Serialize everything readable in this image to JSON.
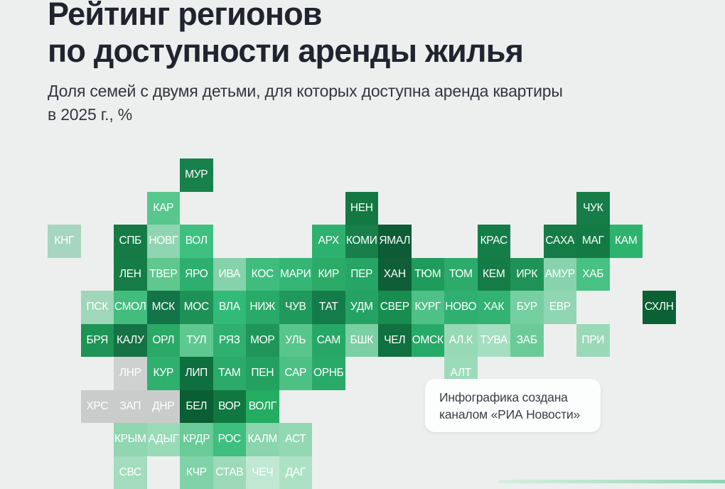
{
  "page": {
    "background": "#edefee"
  },
  "header": {
    "title_line1": "Рейтинг регионов",
    "title_line2": "по доступности аренды жилья",
    "subtitle_line1": "Доля семей с двумя детьми, для которых доступна аренда квартиры",
    "subtitle_line2": "в 2025 г., %"
  },
  "note": {
    "line1": "Инфографика создана",
    "line2": "каналом «РИА Новости»"
  },
  "chart_data": {
    "type": "heatmap",
    "subtype": "tile-cartogram-of-russian-regions",
    "title": "Рейтинг регионов по доступности аренды жилья",
    "subtitle": "Доля семей с двумя детьми, для которых доступна аренда квартиры в 2025 г., %",
    "value_labels_shown": false,
    "no_data_color": "#c9cccb",
    "accent_dark": "#0b6034",
    "accent_light": "#c0e8d3",
    "regions": [
      {
        "label": "МУР",
        "row": 0,
        "col": 4,
        "color": "#16814b"
      },
      {
        "label": "КАР",
        "row": 1,
        "col": 3,
        "color": "#58c78d"
      },
      {
        "label": "НЕН",
        "row": 1,
        "col": 9,
        "color": "#147843"
      },
      {
        "label": "ЧУК",
        "row": 1,
        "col": 16,
        "color": "#167c48"
      },
      {
        "label": "КНГ",
        "row": 2,
        "col": 0,
        "color": "#a6d6bd"
      },
      {
        "label": "СПБ",
        "row": 2,
        "col": 2,
        "color": "#157a46"
      },
      {
        "label": "НОВГ",
        "row": 2,
        "col": 3,
        "color": "#90d5b1"
      },
      {
        "label": "ВОЛ",
        "row": 2,
        "col": 4,
        "color": "#3dc080"
      },
      {
        "label": "АРХ",
        "row": 2,
        "col": 8,
        "color": "#2eb06f"
      },
      {
        "label": "КОМИ",
        "row": 2,
        "col": 9,
        "color": "#187f4b"
      },
      {
        "label": "ЯМАЛ",
        "row": 2,
        "col": 10,
        "color": "#0d5c36"
      },
      {
        "label": "КРАС",
        "row": 2,
        "col": 13,
        "color": "#157d48"
      },
      {
        "label": "САХА",
        "row": 2,
        "col": 15,
        "color": "#157b47"
      },
      {
        "label": "МАГ",
        "row": 2,
        "col": 16,
        "color": "#137a45"
      },
      {
        "label": "КАМ",
        "row": 2,
        "col": 17,
        "color": "#2db36e"
      },
      {
        "label": "ЛЕН",
        "row": 3,
        "col": 2,
        "color": "#157c47"
      },
      {
        "label": "ТВЕР",
        "row": 3,
        "col": 3,
        "color": "#60c78f"
      },
      {
        "label": "ЯРО",
        "row": 3,
        "col": 4,
        "color": "#2db06f"
      },
      {
        "label": "ИВА",
        "row": 3,
        "col": 5,
        "color": "#85d2ab"
      },
      {
        "label": "КОС",
        "row": 3,
        "col": 6,
        "color": "#40bd7e"
      },
      {
        "label": "МАРИ",
        "row": 3,
        "col": 7,
        "color": "#35b676"
      },
      {
        "label": "КИР",
        "row": 3,
        "col": 8,
        "color": "#2cab68"
      },
      {
        "label": "ПЕР",
        "row": 3,
        "col": 9,
        "color": "#27a566"
      },
      {
        "label": "ХАН",
        "row": 3,
        "col": 10,
        "color": "#0f5e38"
      },
      {
        "label": "ТЮМ",
        "row": 3,
        "col": 11,
        "color": "#1f9c5b"
      },
      {
        "label": "ТОМ",
        "row": 3,
        "col": 12,
        "color": "#2cab6b"
      },
      {
        "label": "КЕМ",
        "row": 3,
        "col": 13,
        "color": "#157c48"
      },
      {
        "label": "ИРК",
        "row": 3,
        "col": 14,
        "color": "#1f9357"
      },
      {
        "label": "АМУР",
        "row": 3,
        "col": 15,
        "color": "#88d3ad"
      },
      {
        "label": "ХАБ",
        "row": 3,
        "col": 16,
        "color": "#48c184"
      },
      {
        "label": "ПСК",
        "row": 4,
        "col": 1,
        "color": "#9fd7b8"
      },
      {
        "label": "СМОЛ",
        "row": 4,
        "col": 2,
        "color": "#42bd7e"
      },
      {
        "label": "МСК",
        "row": 4,
        "col": 3,
        "color": "#137448"
      },
      {
        "label": "МОС",
        "row": 4,
        "col": 4,
        "color": "#1e9156"
      },
      {
        "label": "ВЛА",
        "row": 4,
        "col": 5,
        "color": "#31ba78"
      },
      {
        "label": "НИЖ",
        "row": 4,
        "col": 6,
        "color": "#29aa68"
      },
      {
        "label": "ЧУВ",
        "row": 4,
        "col": 7,
        "color": "#21985c"
      },
      {
        "label": "ТАТ",
        "row": 4,
        "col": 8,
        "color": "#147c4a"
      },
      {
        "label": "УДМ",
        "row": 4,
        "col": 9,
        "color": "#25a364"
      },
      {
        "label": "СВЕР",
        "row": 4,
        "col": 10,
        "color": "#188d50"
      },
      {
        "label": "КУРГ",
        "row": 4,
        "col": 11,
        "color": "#4fc186"
      },
      {
        "label": "НОВО",
        "row": 4,
        "col": 12,
        "color": "#2fb071"
      },
      {
        "label": "ХАК",
        "row": 4,
        "col": 13,
        "color": "#32b273"
      },
      {
        "label": "БУР",
        "row": 4,
        "col": 14,
        "color": "#76cfa1"
      },
      {
        "label": "ЕВР",
        "row": 4,
        "col": 15,
        "color": "#90d6b2"
      },
      {
        "label": "СХЛН",
        "row": 4,
        "col": 18,
        "color": "#0b6034"
      },
      {
        "label": "БРЯ",
        "row": 5,
        "col": 1,
        "color": "#1e9356"
      },
      {
        "label": "КАЛУ",
        "row": 5,
        "col": 2,
        "color": "#147244"
      },
      {
        "label": "ОРЛ",
        "row": 5,
        "col": 3,
        "color": "#2aa967"
      },
      {
        "label": "ТУЛ",
        "row": 5,
        "col": 4,
        "color": "#5ec890"
      },
      {
        "label": "РЯЗ",
        "row": 5,
        "col": 5,
        "color": "#2fb071"
      },
      {
        "label": "МОР",
        "row": 5,
        "col": 6,
        "color": "#1f9559"
      },
      {
        "label": "УЛЬ",
        "row": 5,
        "col": 7,
        "color": "#58c58a"
      },
      {
        "label": "САМ",
        "row": 5,
        "col": 8,
        "color": "#27a766"
      },
      {
        "label": "БШК",
        "row": 5,
        "col": 9,
        "color": "#7ccfa3"
      },
      {
        "label": "ЧЕЛ",
        "row": 5,
        "col": 10,
        "color": "#10703f"
      },
      {
        "label": "ОМСК",
        "row": 5,
        "col": 11,
        "color": "#27aa68"
      },
      {
        "label": "АЛ.К",
        "row": 5,
        "col": 12,
        "color": "#97d9b5"
      },
      {
        "label": "ТУВА",
        "row": 5,
        "col": 13,
        "color": "#a5dec0"
      },
      {
        "label": "ЗАБ",
        "row": 5,
        "col": 14,
        "color": "#6bcb98"
      },
      {
        "label": "ПРИ",
        "row": 5,
        "col": 16,
        "color": "#9ad9b8"
      },
      {
        "label": "ЛНР",
        "row": 6,
        "col": 2,
        "color": "#ced1d0"
      },
      {
        "label": "КУР",
        "row": 6,
        "col": 3,
        "color": "#2fb06f"
      },
      {
        "label": "ЛИП",
        "row": 6,
        "col": 4,
        "color": "#0f6f3f"
      },
      {
        "label": "ТАМ",
        "row": 6,
        "col": 5,
        "color": "#2baa6a"
      },
      {
        "label": "ПЕН",
        "row": 6,
        "col": 6,
        "color": "#23a161"
      },
      {
        "label": "САР",
        "row": 6,
        "col": 7,
        "color": "#4dc084"
      },
      {
        "label": "ОРНБ",
        "row": 6,
        "col": 8,
        "color": "#2aaa69"
      },
      {
        "label": "АЛТ",
        "row": 6,
        "col": 12,
        "color": "#9cdbba"
      },
      {
        "label": "ХРС",
        "row": 7,
        "col": 1,
        "color": "#c9cccb"
      },
      {
        "label": "ЗАП",
        "row": 7,
        "col": 2,
        "color": "#c9cccb"
      },
      {
        "label": "ДНР",
        "row": 7,
        "col": 3,
        "color": "#c9cccb"
      },
      {
        "label": "БЕЛ",
        "row": 7,
        "col": 4,
        "color": "#0a5e33"
      },
      {
        "label": "ВОР",
        "row": 7,
        "col": 5,
        "color": "#117741"
      },
      {
        "label": "ВОЛГ",
        "row": 7,
        "col": 6,
        "color": "#24ad62"
      },
      {
        "label": "КРЫМ",
        "row": 8,
        "col": 2,
        "color": "#8fd6b1"
      },
      {
        "label": "АДЫГ",
        "row": 8,
        "col": 3,
        "color": "#99dab8"
      },
      {
        "label": "КРДР",
        "row": 8,
        "col": 4,
        "color": "#68cb98"
      },
      {
        "label": "РОС",
        "row": 8,
        "col": 5,
        "color": "#3ebe7f"
      },
      {
        "label": "КАЛМ",
        "row": 8,
        "col": 6,
        "color": "#8ad4ae"
      },
      {
        "label": "АСТ",
        "row": 8,
        "col": 7,
        "color": "#94d8b3"
      },
      {
        "label": "СВС",
        "row": 9,
        "col": 2,
        "color": "#a3dcbe"
      },
      {
        "label": "КЧР",
        "row": 9,
        "col": 4,
        "color": "#80d2a8"
      },
      {
        "label": "СТАВ",
        "row": 9,
        "col": 5,
        "color": "#9cdaba"
      },
      {
        "label": "ЧЕЧ",
        "row": 9,
        "col": 6,
        "color": "#c0e8d3"
      },
      {
        "label": "ДАГ",
        "row": 9,
        "col": 7,
        "color": "#ade1c5"
      }
    ]
  }
}
